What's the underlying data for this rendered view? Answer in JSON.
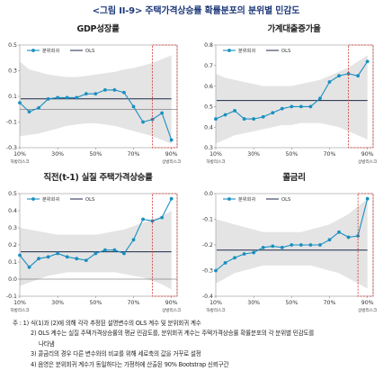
{
  "figure_title": "<그림 II-9> 주택가격상승률 확률분포의 분위별 민감도",
  "legend": {
    "quantile": "분위회귀",
    "ols": "OLS"
  },
  "x_end_labels": {
    "left": "하방리스크",
    "right": "상방리스크"
  },
  "colors": {
    "quantile_line": "#1a8fc0",
    "ols_line": "#1b2a4a",
    "band": "#e4e4e4",
    "risk_box": "#d0312d"
  },
  "chart_data": [
    {
      "type": "line",
      "title": "GDP성장률",
      "x": [
        10,
        15,
        20,
        25,
        30,
        35,
        40,
        45,
        50,
        55,
        60,
        65,
        70,
        75,
        80,
        85,
        90
      ],
      "x_ticks": [
        "10%",
        "30%",
        "50%",
        "70%",
        "90%"
      ],
      "y_ticks": [
        "0.5",
        "0.3",
        "0.1",
        "-0.1",
        "-0.3"
      ],
      "ylim": [
        -0.3,
        0.5
      ],
      "inverted": false,
      "series": [
        {
          "name": "분위회귀",
          "values": [
            0.05,
            -0.02,
            0.01,
            0.08,
            0.09,
            0.09,
            0.09,
            0.12,
            0.12,
            0.15,
            0.15,
            0.13,
            0.02,
            -0.1,
            -0.08,
            -0.03,
            -0.24
          ]
        },
        {
          "name": "OLS",
          "values": [
            0.08,
            0.08,
            0.08,
            0.08,
            0.08,
            0.08,
            0.08,
            0.08,
            0.08,
            0.08,
            0.08,
            0.08,
            0.08,
            0.08,
            0.08,
            0.08,
            0.08
          ]
        }
      ],
      "band_upper": [
        0.37,
        0.31,
        0.29,
        0.27,
        0.26,
        0.25,
        0.25,
        0.26,
        0.27,
        0.28,
        0.29,
        0.31,
        0.32,
        0.34,
        0.36,
        0.39,
        0.42
      ],
      "band_lower": [
        -0.21,
        -0.2,
        -0.19,
        -0.17,
        -0.15,
        -0.13,
        -0.12,
        -0.11,
        -0.11,
        -0.12,
        -0.13,
        -0.15,
        -0.17,
        -0.19,
        -0.21,
        -0.24,
        -0.27
      ],
      "highlight_x": [
        80,
        93
      ],
      "zero_line": 0
    },
    {
      "type": "line",
      "title": "가계대출증가율",
      "x": [
        10,
        15,
        20,
        25,
        30,
        35,
        40,
        45,
        50,
        55,
        60,
        65,
        70,
        75,
        80,
        85,
        90
      ],
      "x_ticks": [
        "10%",
        "30%",
        "50%",
        "70%",
        "90%"
      ],
      "y_ticks": [
        "0.8",
        "0.7",
        "0.6",
        "0.5",
        "0.4",
        "0.3"
      ],
      "ylim": [
        0.3,
        0.8
      ],
      "inverted": false,
      "series": [
        {
          "name": "분위회귀",
          "values": [
            0.44,
            0.46,
            0.48,
            0.44,
            0.44,
            0.45,
            0.47,
            0.49,
            0.5,
            0.5,
            0.5,
            0.54,
            0.62,
            0.65,
            0.66,
            0.65,
            0.72
          ]
        },
        {
          "name": "OLS",
          "values": [
            0.53,
            0.53,
            0.53,
            0.53,
            0.53,
            0.53,
            0.53,
            0.53,
            0.53,
            0.53,
            0.53,
            0.53,
            0.53,
            0.53,
            0.53,
            0.53,
            0.53
          ]
        }
      ],
      "band_upper": [
        0.66,
        0.64,
        0.63,
        0.62,
        0.61,
        0.6,
        0.6,
        0.6,
        0.6,
        0.61,
        0.62,
        0.63,
        0.65,
        0.67,
        0.69,
        0.72,
        0.75
      ],
      "band_lower": [
        0.32,
        0.34,
        0.36,
        0.37,
        0.38,
        0.39,
        0.4,
        0.41,
        0.41,
        0.42,
        0.42,
        0.42,
        0.41,
        0.4,
        0.38,
        0.36,
        0.34
      ],
      "highlight_x": [
        80,
        93
      ],
      "zero_line": null
    },
    {
      "type": "line",
      "title": "직전(t-1) 실질 주택가격상승률",
      "x": [
        10,
        15,
        20,
        25,
        30,
        35,
        40,
        45,
        50,
        55,
        60,
        65,
        70,
        75,
        80,
        85,
        90
      ],
      "x_ticks": [
        "10%",
        "30%",
        "50%",
        "70%",
        "90%"
      ],
      "y_ticks": [
        "0.5",
        "0.4",
        "0.3",
        "0.2",
        "0.1",
        "0.0",
        "-0.1"
      ],
      "ylim": [
        -0.1,
        0.5
      ],
      "inverted": false,
      "series": [
        {
          "name": "분위회귀",
          "values": [
            0.14,
            0.07,
            0.12,
            0.13,
            0.15,
            0.13,
            0.12,
            0.11,
            0.15,
            0.17,
            0.17,
            0.15,
            0.23,
            0.35,
            0.34,
            0.36,
            0.47
          ]
        },
        {
          "name": "OLS",
          "values": [
            0.16,
            0.16,
            0.16,
            0.16,
            0.16,
            0.16,
            0.16,
            0.16,
            0.16,
            0.16,
            0.16,
            0.16,
            0.16,
            0.16,
            0.16,
            0.16,
            0.16
          ]
        }
      ],
      "band_upper": [
        0.3,
        0.29,
        0.28,
        0.27,
        0.26,
        0.26,
        0.26,
        0.26,
        0.26,
        0.27,
        0.28,
        0.29,
        0.31,
        0.33,
        0.35,
        0.37,
        0.4
      ],
      "band_lower": [
        -0.04,
        -0.02,
        0.0,
        0.02,
        0.03,
        0.04,
        0.04,
        0.04,
        0.04,
        0.04,
        0.04,
        0.03,
        0.02,
        0.01,
        -0.01,
        -0.03,
        -0.06
      ],
      "highlight_x": [
        80,
        93
      ],
      "zero_line": 0
    },
    {
      "type": "line",
      "title": "콜금리",
      "x": [
        10,
        15,
        20,
        25,
        30,
        35,
        40,
        45,
        50,
        55,
        60,
        65,
        70,
        75,
        80,
        85,
        90
      ],
      "x_ticks": [
        "10%",
        "30%",
        "50%",
        "70%",
        "90%"
      ],
      "y_ticks": [
        "-0.4",
        "-0.3",
        "-0.2",
        "-0.1",
        "0.0"
      ],
      "ylim": [
        -0.4,
        0.0
      ],
      "inverted": true,
      "series": [
        {
          "name": "분위회귀",
          "values": [
            -0.3,
            -0.27,
            -0.25,
            -0.235,
            -0.23,
            -0.21,
            -0.205,
            -0.21,
            -0.2,
            -0.2,
            -0.2,
            -0.2,
            -0.18,
            -0.15,
            -0.17,
            -0.165,
            -0.02
          ]
        },
        {
          "name": "OLS",
          "values": [
            -0.22,
            -0.22,
            -0.22,
            -0.22,
            -0.22,
            -0.22,
            -0.22,
            -0.22,
            -0.22,
            -0.22,
            -0.22,
            -0.22,
            -0.22,
            -0.22,
            -0.22,
            -0.22,
            -0.22
          ]
        }
      ],
      "band_upper": [
        -0.35,
        -0.33,
        -0.31,
        -0.3,
        -0.29,
        -0.28,
        -0.28,
        -0.28,
        -0.28,
        -0.28,
        -0.28,
        -0.29,
        -0.3,
        -0.31,
        -0.33,
        -0.35,
        -0.37
      ],
      "band_lower": [
        -0.1,
        -0.11,
        -0.12,
        -0.13,
        -0.14,
        -0.15,
        -0.15,
        -0.15,
        -0.15,
        -0.15,
        -0.14,
        -0.13,
        -0.12,
        -0.1,
        -0.08,
        -0.05,
        -0.02
      ],
      "highlight_x": [
        85,
        93
      ],
      "zero_line": null
    }
  ],
  "notes": [
    "주 : 1) 식(1)과 (2)에 의해 각각 추정된 설명변수의 OLS 계수 및 분위회귀 계수",
    "2) OLS 계수는 실질 주택가격상승률의 평균 민감도를, 분위회귀 계수는 주택가격상승률 확률분포의 각 분위별 민감도를",
    "나타냄",
    "3) 콜금리의 경우 다른 변수와의 비교를 위해 세로축의 값을 거꾸로 설정",
    "4) 음영은 분위회귀 계수가 동일하다는 가정하에 산출된 90% Bootstrap 신뢰구간"
  ]
}
